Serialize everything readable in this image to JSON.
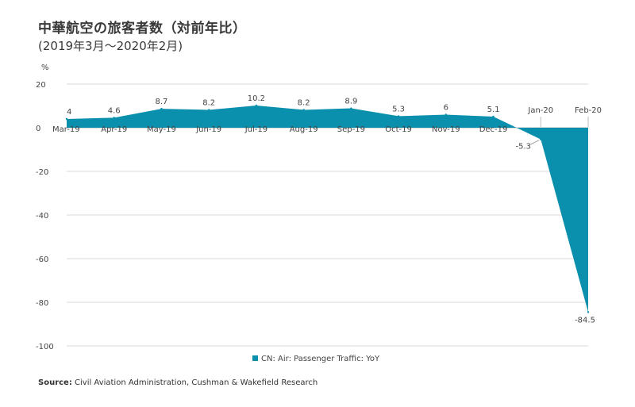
{
  "title": "中華航空の旅客者数（対前年比）",
  "subtitle": "(2019年3月～2020年2月)",
  "source_prefix": "Source:",
  "source_text": " Civil Aviation Administration, Cushman & Wakefield Research",
  "colors": {
    "series": "#0a8fad",
    "grid": "#d9d9d9",
    "text": "#444444"
  },
  "chart_data": {
    "type": "area",
    "ylabel": "%",
    "ylim": [
      -100,
      20
    ],
    "yticks": [
      20,
      0,
      -20,
      -40,
      -60,
      -80,
      -100
    ],
    "grid": true,
    "legend_position": "bottom-center",
    "categories": [
      "Mar-19",
      "Apr-19",
      "May-19",
      "Jun-19",
      "Jul-19",
      "Aug-19",
      "Sep-19",
      "Oct-19",
      "Nov-19",
      "Dec-19",
      "Jan-20",
      "Feb-20"
    ],
    "series": [
      {
        "name": "CN: Air: Passenger Traffic: YoY",
        "values": [
          4,
          4.6,
          8.7,
          8.2,
          10.2,
          8.2,
          8.9,
          5.3,
          6,
          5.1,
          -5.3,
          -84.5
        ],
        "labels": [
          "4",
          "4.6",
          "8.7",
          "8.2",
          "10.2",
          "8.2",
          "8.9",
          "5.3",
          "6",
          "5.1",
          "-5.3",
          "-84.5"
        ]
      }
    ]
  }
}
